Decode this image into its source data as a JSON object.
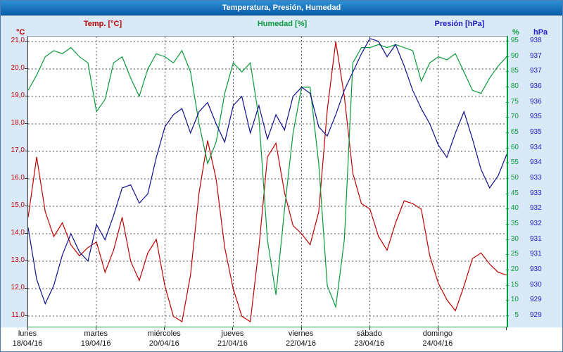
{
  "title_bar": {
    "title": "Temperatura, Presión, Humedad"
  },
  "legend": {
    "temp": "Temp. [°C]",
    "humidity": "Humedad [%]",
    "pressure": "Presión [hPa]"
  },
  "axes": {
    "left_unit": "°C",
    "humidity_unit": "%",
    "pressure_unit": "hPa",
    "temp_tick_labels": [
      "21,0",
      "20,0",
      "19,0",
      "18,0",
      "17,0",
      "16,0",
      "15,0",
      "14,0",
      "13,0",
      "12,0",
      "11,0"
    ],
    "temp_tick_values": [
      21,
      20,
      19,
      18,
      17,
      16,
      15,
      14,
      13,
      12,
      11
    ],
    "humidity_tick_labels": [
      "95",
      "90",
      "85",
      "80",
      "75",
      "70",
      "65",
      "60",
      "55",
      "50",
      "45",
      "40",
      "35",
      "30",
      "25",
      "20",
      "15",
      "10",
      "5"
    ],
    "humidity_tick_values": [
      95,
      90,
      85,
      80,
      75,
      70,
      65,
      60,
      55,
      50,
      45,
      40,
      35,
      30,
      25,
      20,
      15,
      10,
      5
    ],
    "pressure_tick_labels": [
      "938",
      "937",
      "937",
      "936",
      "936",
      "935",
      "935",
      "934",
      "934",
      "933",
      "933",
      "932",
      "932",
      "931",
      "931",
      "930",
      "930",
      "929",
      "929"
    ],
    "pressure_tick_values": [
      938,
      937.5,
      937,
      936.5,
      936,
      935.5,
      935,
      934.5,
      934,
      933.5,
      933,
      932.5,
      932,
      931.5,
      931,
      930.5,
      930,
      929.5,
      929
    ]
  },
  "colors": {
    "temp": "#c00000",
    "humidity": "#0a9a3a",
    "pressure": "#10108e",
    "pressure_text": "#2020cc",
    "grid": "#555555",
    "axis_frame_green": "#00a33e",
    "panel_bg": "#d9e9f7",
    "titlebar_top": "#2f8fd4",
    "titlebar_bottom": "#0b5ea9"
  },
  "chart_data": {
    "type": "line",
    "title": "Temperatura, Presión, Humedad",
    "grid": "dashed",
    "legend_position": "top",
    "x_axis": {
      "unit": "hours since 18/04/16 00:00",
      "range": [
        0,
        168
      ],
      "sample_interval_hours": 3
    },
    "days": [
      {
        "name": "lunes",
        "date": "18/04/16"
      },
      {
        "name": "martes",
        "date": "19/04/16"
      },
      {
        "name": "miércoles",
        "date": "20/04/16"
      },
      {
        "name": "jueves",
        "date": "21/04/16"
      },
      {
        "name": "viernes",
        "date": "22/04/16"
      },
      {
        "name": "sábado",
        "date": "23/04/16"
      },
      {
        "name": "domingo",
        "date": "24/04/16"
      }
    ],
    "axis_ranges": {
      "temp": [
        10.62,
        21.18
      ],
      "humidity": [
        1.54,
        96.6
      ],
      "pressure": [
        928.65,
        938.16
      ]
    },
    "series": [
      {
        "name": "Temp. [°C]",
        "axis": "temp",
        "unit": "°C",
        "color": "#c00000",
        "values": [
          14.6,
          16.8,
          14.8,
          13.9,
          14.4,
          13.6,
          13.2,
          13.5,
          13.7,
          12.6,
          13.4,
          14.6,
          13.0,
          12.3,
          13.3,
          13.8,
          12.1,
          11.0,
          10.8,
          12.5,
          15.5,
          17.4,
          16.0,
          13.5,
          12.0,
          11.0,
          10.8,
          13.5,
          16.8,
          17.3,
          15.5,
          14.3,
          14.0,
          13.6,
          14.8,
          18.5,
          21.0,
          19.0,
          16.2,
          15.1,
          14.9,
          13.9,
          13.4,
          14.4,
          15.2,
          15.1,
          14.9,
          13.2,
          12.2,
          11.6,
          11.2,
          12.1,
          13.1,
          13.3,
          12.9,
          12.6,
          12.5
        ]
      },
      {
        "name": "Humedad [%]",
        "axis": "humidity",
        "unit": "%",
        "color": "#0a9a3a",
        "values": [
          79,
          84,
          90,
          92,
          91,
          93,
          90,
          88,
          72,
          76,
          88,
          90,
          83,
          77,
          86,
          91,
          90,
          88,
          92,
          85,
          68,
          55,
          62,
          78,
          88,
          85,
          88,
          70,
          30,
          12,
          40,
          65,
          80,
          80,
          55,
          15,
          8,
          30,
          88,
          93,
          93,
          94,
          93,
          94,
          93,
          92,
          82,
          88,
          90,
          89,
          91,
          85,
          79,
          78,
          83,
          87,
          90
        ]
      },
      {
        "name": "Presión [hPa]",
        "axis": "pressure",
        "unit": "hPa",
        "color": "#10108e",
        "values": [
          931.9,
          930.2,
          929.4,
          930.0,
          931.0,
          931.7,
          931.1,
          930.8,
          932.0,
          931.5,
          932.3,
          933.2,
          933.3,
          932.7,
          933.0,
          934.2,
          935.2,
          935.6,
          935.8,
          935.0,
          935.7,
          936.0,
          935.3,
          934.7,
          935.9,
          936.2,
          935.0,
          935.9,
          934.8,
          935.6,
          935.1,
          936.2,
          936.5,
          936.3,
          935.2,
          934.9,
          935.6,
          936.4,
          937.0,
          937.6,
          938.1,
          938.0,
          937.5,
          937.9,
          937.2,
          936.4,
          935.8,
          935.3,
          934.6,
          934.2,
          935.0,
          935.7,
          934.8,
          933.8,
          933.2,
          933.6,
          934.3
        ]
      }
    ]
  }
}
